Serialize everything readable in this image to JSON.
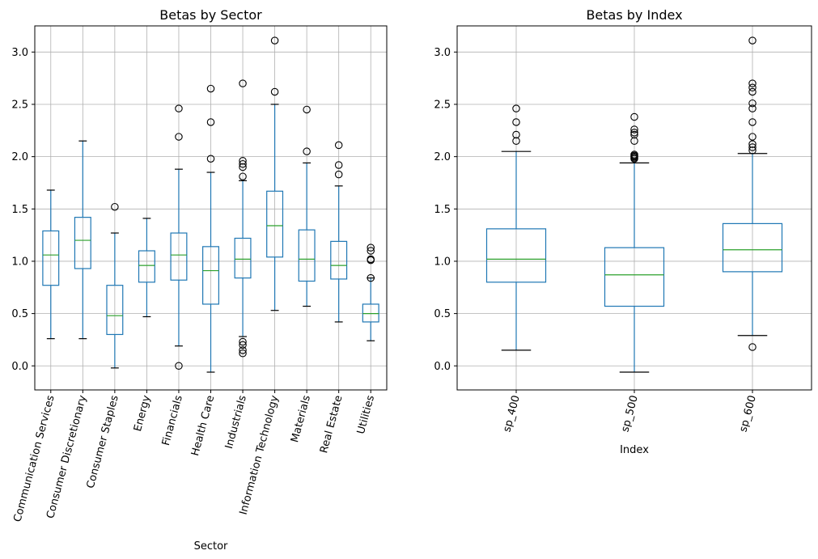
{
  "chart_data": [
    {
      "type": "box",
      "title": "Betas by Sector",
      "xlabel": "Sector",
      "ylabel": "",
      "ylim": [
        -0.23,
        3.25
      ],
      "yticks": [
        0.0,
        0.5,
        1.0,
        1.5,
        2.0,
        2.5,
        3.0
      ],
      "ytick_labels": [
        "0.0",
        "0.5",
        "1.0",
        "1.5",
        "2.0",
        "2.5",
        "3.0"
      ],
      "grid": true,
      "colors": {
        "box": "#1f77b4",
        "median": "#2ca02c",
        "whisker_cap": "#000000",
        "grid": "#b0b0b0"
      },
      "categories": [
        "Communication Services",
        "Consumer Discretionary",
        "Consumer Staples",
        "Energy",
        "Financials",
        "Health Care",
        "Industrials",
        "Information Technology",
        "Materials",
        "Real Estate",
        "Utilities"
      ],
      "boxes": [
        {
          "whislo": 0.26,
          "q1": 0.77,
          "med": 1.06,
          "q3": 1.29,
          "whishi": 1.68,
          "fliers": []
        },
        {
          "whislo": 0.26,
          "q1": 0.93,
          "med": 1.2,
          "q3": 1.42,
          "whishi": 2.15,
          "fliers": []
        },
        {
          "whislo": -0.02,
          "q1": 0.3,
          "med": 0.48,
          "q3": 0.77,
          "whishi": 1.27,
          "fliers": [
            1.52
          ]
        },
        {
          "whislo": 0.47,
          "q1": 0.8,
          "med": 0.96,
          "q3": 1.1,
          "whishi": 1.41,
          "fliers": []
        },
        {
          "whislo": 0.19,
          "q1": 0.82,
          "med": 1.06,
          "q3": 1.27,
          "whishi": 1.88,
          "fliers": [
            2.46,
            2.19,
            0.0
          ]
        },
        {
          "whislo": -0.06,
          "q1": 0.59,
          "med": 0.91,
          "q3": 1.14,
          "whishi": 1.85,
          "fliers": [
            2.65,
            2.33,
            1.98
          ]
        },
        {
          "whislo": 0.28,
          "q1": 0.84,
          "med": 1.02,
          "q3": 1.22,
          "whishi": 1.77,
          "fliers": [
            2.7,
            1.96,
            1.93,
            1.9,
            1.81,
            0.23,
            0.2,
            0.15,
            0.12
          ]
        },
        {
          "whislo": 0.53,
          "q1": 1.04,
          "med": 1.34,
          "q3": 1.67,
          "whishi": 2.5,
          "fliers": [
            3.11,
            2.62
          ]
        },
        {
          "whislo": 0.57,
          "q1": 0.81,
          "med": 1.02,
          "q3": 1.3,
          "whishi": 1.94,
          "fliers": [
            2.45,
            2.05
          ]
        },
        {
          "whislo": 0.42,
          "q1": 0.83,
          "med": 0.96,
          "q3": 1.19,
          "whishi": 1.72,
          "fliers": [
            2.11,
            1.92,
            1.83
          ]
        },
        {
          "whislo": 0.24,
          "q1": 0.42,
          "med": 0.5,
          "q3": 0.59,
          "whishi": 0.84,
          "fliers": [
            1.13,
            1.1,
            1.02,
            1.01,
            0.84
          ]
        }
      ]
    },
    {
      "type": "box",
      "title": "Betas by Index",
      "xlabel": "Index",
      "ylabel": "",
      "ylim": [
        -0.23,
        3.25
      ],
      "yticks": [
        0.0,
        0.5,
        1.0,
        1.5,
        2.0,
        2.5,
        3.0
      ],
      "ytick_labels": [
        "0.0",
        "0.5",
        "1.0",
        "1.5",
        "2.0",
        "2.5",
        "3.0"
      ],
      "grid": true,
      "colors": {
        "box": "#1f77b4",
        "median": "#2ca02c",
        "whisker_cap": "#000000",
        "grid": "#b0b0b0"
      },
      "categories": [
        "sp_400",
        "sp_500",
        "sp_600"
      ],
      "boxes": [
        {
          "whislo": 0.15,
          "q1": 0.8,
          "med": 1.02,
          "q3": 1.31,
          "whishi": 2.05,
          "fliers": [
            2.46,
            2.33,
            2.21,
            2.15
          ]
        },
        {
          "whislo": -0.06,
          "q1": 0.57,
          "med": 0.87,
          "q3": 1.13,
          "whishi": 1.94,
          "fliers": [
            2.38,
            2.26,
            2.23,
            2.21,
            2.15,
            2.02,
            2.01,
            2.0,
            1.99,
            1.98
          ]
        },
        {
          "whislo": 0.29,
          "q1": 0.9,
          "med": 1.11,
          "q3": 1.36,
          "whishi": 2.03,
          "fliers": [
            3.11,
            2.7,
            2.66,
            2.62,
            2.51,
            2.46,
            2.33,
            2.19,
            2.12,
            2.09,
            2.06,
            0.18
          ]
        }
      ]
    }
  ]
}
